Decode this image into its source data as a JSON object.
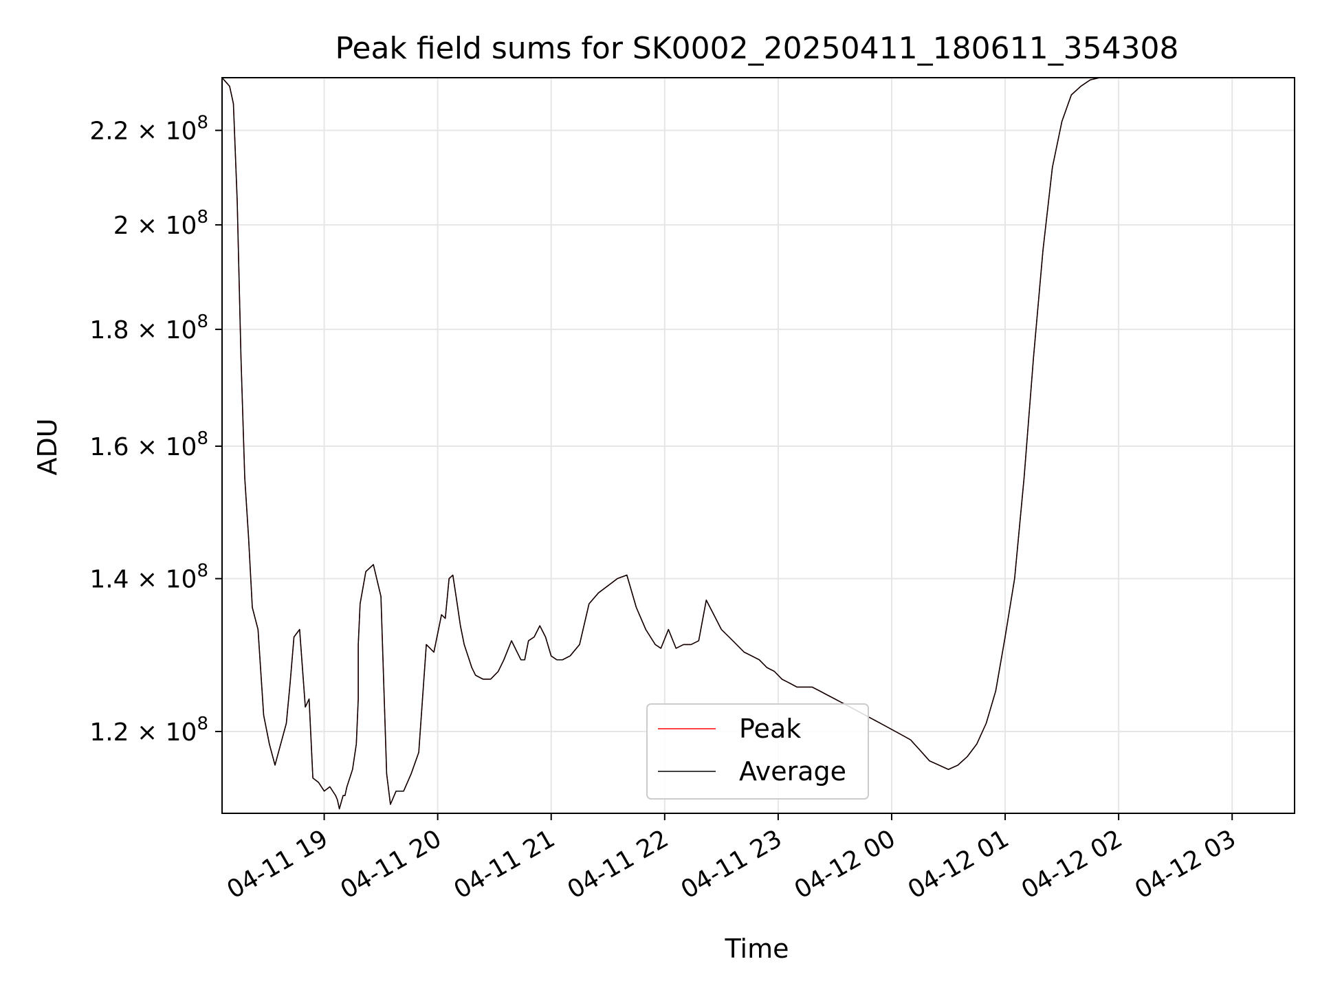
{
  "chart_data": {
    "type": "line",
    "title": "Peak field sums for SK0002_20250411_180611_354308",
    "xlabel": "Time",
    "ylabel": "ADU",
    "yscale": "log",
    "grid": true,
    "legend_position": "lower center",
    "xlim": [
      "2025-04-11 18:06",
      "2025-04-12 03:33"
    ],
    "ylim": [
      110500000,
      232000000
    ],
    "x_ticks": [
      {
        "value": "2025-04-11 19:00",
        "label": "04-11 19"
      },
      {
        "value": "2025-04-11 20:00",
        "label": "04-11 20"
      },
      {
        "value": "2025-04-11 21:00",
        "label": "04-11 21"
      },
      {
        "value": "2025-04-11 22:00",
        "label": "04-11 22"
      },
      {
        "value": "2025-04-11 23:00",
        "label": "04-11 23"
      },
      {
        "value": "2025-04-12 00:00",
        "label": "04-12 00"
      },
      {
        "value": "2025-04-12 01:00",
        "label": "04-12 01"
      },
      {
        "value": "2025-04-12 02:00",
        "label": "04-12 02"
      },
      {
        "value": "2025-04-12 03:00",
        "label": "04-12 03"
      }
    ],
    "y_ticks": [
      {
        "value": 120000000,
        "mantissa": "1.2",
        "base": "10",
        "exp": "8"
      },
      {
        "value": 140000000,
        "mantissa": "1.4",
        "base": "10",
        "exp": "8"
      },
      {
        "value": 160000000,
        "mantissa": "1.6",
        "base": "10",
        "exp": "8"
      },
      {
        "value": 180000000,
        "mantissa": "1.8",
        "base": "10",
        "exp": "8"
      },
      {
        "value": 200000000,
        "mantissa": "2",
        "base": "10",
        "exp": "8"
      },
      {
        "value": 220000000,
        "mantissa": "2.2",
        "base": "10",
        "exp": "8"
      }
    ],
    "series": [
      {
        "name": "Peak",
        "color": "#ff0000",
        "x": [
          "2025-04-11 18:06",
          "2025-04-11 18:10",
          "2025-04-11 18:12",
          "2025-04-11 18:14",
          "2025-04-11 18:16",
          "2025-04-11 18:18",
          "2025-04-11 18:20",
          "2025-04-11 18:22",
          "2025-04-11 18:25",
          "2025-04-11 18:28",
          "2025-04-11 18:31",
          "2025-04-11 18:34",
          "2025-04-11 18:37",
          "2025-04-11 18:40",
          "2025-04-11 18:42",
          "2025-04-11 18:44",
          "2025-04-11 18:47",
          "2025-04-11 18:50",
          "2025-04-11 18:52",
          "2025-04-11 18:54",
          "2025-04-11 18:57",
          "2025-04-11 19:00",
          "2025-04-11 19:03",
          "2025-04-11 19:06",
          "2025-04-11 19:07",
          "2025-04-11 19:08",
          "2025-04-11 19:10",
          "2025-04-11 19:11",
          "2025-04-11 19:12",
          "2025-04-11 19:15",
          "2025-04-11 19:17",
          "2025-04-11 19:18",
          "2025-04-11 19:18",
          "2025-04-11 19:19",
          "2025-04-11 19:22",
          "2025-04-11 19:26",
          "2025-04-11 19:30",
          "2025-04-11 19:33",
          "2025-04-11 19:35",
          "2025-04-11 19:38",
          "2025-04-11 19:42",
          "2025-04-11 19:46",
          "2025-04-11 19:50",
          "2025-04-11 19:54",
          "2025-04-11 19:58",
          "2025-04-11 20:02",
          "2025-04-11 20:04",
          "2025-04-11 20:06",
          "2025-04-11 20:08",
          "2025-04-11 20:10",
          "2025-04-11 20:12",
          "2025-04-11 20:14",
          "2025-04-11 20:16",
          "2025-04-11 20:18",
          "2025-04-11 20:20",
          "2025-04-11 20:24",
          "2025-04-11 20:28",
          "2025-04-11 20:32",
          "2025-04-11 20:35",
          "2025-04-11 20:39",
          "2025-04-11 20:42",
          "2025-04-11 20:44",
          "2025-04-11 20:46",
          "2025-04-11 20:48",
          "2025-04-11 20:51",
          "2025-04-11 20:54",
          "2025-04-11 20:57",
          "2025-04-11 21:00",
          "2025-04-11 21:03",
          "2025-04-11 21:06",
          "2025-04-11 21:10",
          "2025-04-11 21:15",
          "2025-04-11 21:20",
          "2025-04-11 21:25",
          "2025-04-11 21:30",
          "2025-04-11 21:35",
          "2025-04-11 21:40",
          "2025-04-11 21:45",
          "2025-04-11 21:50",
          "2025-04-11 21:55",
          "2025-04-11 21:58",
          "2025-04-11 22:02",
          "2025-04-11 22:06",
          "2025-04-11 22:10",
          "2025-04-11 22:14",
          "2025-04-11 22:18",
          "2025-04-11 22:22",
          "2025-04-11 22:26",
          "2025-04-11 22:30",
          "2025-04-11 22:34",
          "2025-04-11 22:38",
          "2025-04-11 22:42",
          "2025-04-11 22:46",
          "2025-04-11 22:50",
          "2025-04-11 22:54",
          "2025-04-11 22:58",
          "2025-04-11 23:02",
          "2025-04-11 23:06",
          "2025-04-11 23:10",
          "2025-04-11 23:14",
          "2025-04-11 23:18",
          "2025-04-11 23:22",
          "2025-04-11 23:26",
          "2025-04-11 23:30",
          "2025-04-11 23:34",
          "2025-04-11 23:38",
          "2025-04-11 23:42",
          "2025-04-11 23:46",
          "2025-04-11 23:50",
          "2025-04-11 23:54",
          "2025-04-11 23:58",
          "2025-04-12 00:02",
          "2025-04-12 00:06",
          "2025-04-12 00:10",
          "2025-04-12 00:12",
          "2025-04-12 00:14",
          "2025-04-12 00:16",
          "2025-04-12 00:20",
          "2025-04-12 00:25",
          "2025-04-12 00:30",
          "2025-04-12 00:35",
          "2025-04-12 00:40",
          "2025-04-12 00:45",
          "2025-04-12 00:50",
          "2025-04-12 00:55",
          "2025-04-12 01:00",
          "2025-04-12 01:05",
          "2025-04-12 01:10",
          "2025-04-12 01:15",
          "2025-04-12 01:20",
          "2025-04-12 01:25",
          "2025-04-12 01:30",
          "2025-04-12 01:35",
          "2025-04-12 01:40",
          "2025-04-12 01:45",
          "2025-04-12 01:50",
          "2025-04-12 01:55",
          "2025-04-12 02:00",
          "2025-04-12 02:05",
          "2025-04-12 02:10",
          "2025-04-12 02:15",
          "2025-04-12 02:20",
          "2025-04-12 02:25",
          "2025-04-12 02:30",
          "2025-04-12 02:35",
          "2025-04-12 02:40",
          "2025-04-12 02:43",
          "2025-04-12 02:46",
          "2025-04-12 02:48",
          "2025-04-12 02:51",
          "2025-04-12 02:54",
          "2025-04-12 02:57",
          "2025-04-12 03:00",
          "2025-04-12 03:03",
          "2025-04-12 03:06",
          "2025-04-12 03:09",
          "2025-04-12 03:12",
          "2025-04-12 03:15",
          "2025-04-12 03:18",
          "2025-04-12 03:21",
          "2025-04-12 03:25",
          "2025-04-12 03:33"
        ],
        "y": [
          232000000,
          230000000,
          226000000,
          205000000,
          175000000,
          155000000,
          146000000,
          136000000,
          133000000,
          122000000,
          118500000,
          116000000,
          118500000,
          121000000,
          126000000,
          132000000,
          133000000,
          123000000,
          124000000,
          114500000,
          114000000,
          113000000,
          113500000,
          112500000,
          112000000,
          111000000,
          112500000,
          112500000,
          113500000,
          115500000,
          118500000,
          124000000,
          131000000,
          136500000,
          141000000,
          142000000,
          137500000,
          115000000,
          111500000,
          113000000,
          113000000,
          115000000,
          117500000,
          131000000,
          130000000,
          135000000,
          134500000,
          140000000,
          140500000,
          137000000,
          133500000,
          131000000,
          129500000,
          128000000,
          127000000,
          126500000,
          126500000,
          127500000,
          129000000,
          131500000,
          130000000,
          129000000,
          129000000,
          131500000,
          132000000,
          133500000,
          132000000,
          129500000,
          129000000,
          129000000,
          129500000,
          131000000,
          136500000,
          138000000,
          139000000,
          140000000,
          140500000,
          136000000,
          133000000,
          131000000,
          130500000,
          133000000,
          130500000,
          131000000,
          131000000,
          131500000,
          137000000,
          135000000,
          133000000,
          132000000,
          131000000,
          130000000,
          129500000,
          129000000,
          128000000,
          127500000,
          126500000,
          126000000,
          125500000,
          125500000,
          125500000,
          125000000,
          124500000,
          124000000,
          123500000,
          123000000,
          122500000,
          122000000,
          121500000,
          121000000,
          120500000,
          120000000,
          119500000,
          119000000,
          118500000,
          118000000,
          117500000,
          116500000,
          116000000,
          115500000,
          116000000,
          117000000,
          118500000,
          121000000,
          125000000,
          132000000,
          140000000,
          155000000,
          175000000,
          195000000,
          212000000,
          222000000,
          228000000,
          230000000,
          231500000,
          232000000,
          232000000,
          232000000,
          232000000,
          232000000,
          232000000,
          232000000,
          232000000,
          232000000,
          232000000,
          232000000,
          232000000,
          232000000,
          232000000,
          232000000,
          232000000,
          232000000,
          232000000,
          232000000,
          232000000,
          232000000,
          232000000,
          232000000,
          232000000,
          232000000,
          232000000,
          232000000
        ]
      },
      {
        "name": "Average",
        "color": "#000000",
        "x": [
          "2025-04-11 18:06",
          "2025-04-11 18:10",
          "2025-04-11 18:12",
          "2025-04-11 18:14",
          "2025-04-11 18:16",
          "2025-04-11 18:18",
          "2025-04-11 18:20",
          "2025-04-11 18:22",
          "2025-04-11 18:25",
          "2025-04-11 18:28",
          "2025-04-11 18:31",
          "2025-04-11 18:34",
          "2025-04-11 18:37",
          "2025-04-11 18:40",
          "2025-04-11 18:42",
          "2025-04-11 18:44",
          "2025-04-11 18:47",
          "2025-04-11 18:50",
          "2025-04-11 18:52",
          "2025-04-11 18:54",
          "2025-04-11 18:57",
          "2025-04-11 19:00",
          "2025-04-11 19:03",
          "2025-04-11 19:06",
          "2025-04-11 19:07",
          "2025-04-11 19:08",
          "2025-04-11 19:10",
          "2025-04-11 19:11",
          "2025-04-11 19:12",
          "2025-04-11 19:15",
          "2025-04-11 19:17",
          "2025-04-11 19:18",
          "2025-04-11 19:18",
          "2025-04-11 19:19",
          "2025-04-11 19:22",
          "2025-04-11 19:26",
          "2025-04-11 19:30",
          "2025-04-11 19:33",
          "2025-04-11 19:35",
          "2025-04-11 19:38",
          "2025-04-11 19:42",
          "2025-04-11 19:46",
          "2025-04-11 19:50",
          "2025-04-11 19:54",
          "2025-04-11 19:58",
          "2025-04-11 20:02",
          "2025-04-11 20:04",
          "2025-04-11 20:06",
          "2025-04-11 20:08",
          "2025-04-11 20:10",
          "2025-04-11 20:12",
          "2025-04-11 20:14",
          "2025-04-11 20:16",
          "2025-04-11 20:18",
          "2025-04-11 20:20",
          "2025-04-11 20:24",
          "2025-04-11 20:28",
          "2025-04-11 20:32",
          "2025-04-11 20:35",
          "2025-04-11 20:39",
          "2025-04-11 20:42",
          "2025-04-11 20:44",
          "2025-04-11 20:46",
          "2025-04-11 20:48",
          "2025-04-11 20:51",
          "2025-04-11 20:54",
          "2025-04-11 20:57",
          "2025-04-11 21:00",
          "2025-04-11 21:03",
          "2025-04-11 21:06",
          "2025-04-11 21:10",
          "2025-04-11 21:15",
          "2025-04-11 21:20",
          "2025-04-11 21:25",
          "2025-04-11 21:30",
          "2025-04-11 21:35",
          "2025-04-11 21:40",
          "2025-04-11 21:45",
          "2025-04-11 21:50",
          "2025-04-11 21:55",
          "2025-04-11 21:58",
          "2025-04-11 22:02",
          "2025-04-11 22:06",
          "2025-04-11 22:10",
          "2025-04-11 22:14",
          "2025-04-11 22:18",
          "2025-04-11 22:22",
          "2025-04-11 22:26",
          "2025-04-11 22:30",
          "2025-04-11 22:34",
          "2025-04-11 22:38",
          "2025-04-11 22:42",
          "2025-04-11 22:46",
          "2025-04-11 22:50",
          "2025-04-11 22:54",
          "2025-04-11 22:58",
          "2025-04-11 23:02",
          "2025-04-11 23:06",
          "2025-04-11 23:10",
          "2025-04-11 23:14",
          "2025-04-11 23:18",
          "2025-04-11 23:22",
          "2025-04-11 23:26",
          "2025-04-11 23:30",
          "2025-04-11 23:34",
          "2025-04-11 23:38",
          "2025-04-11 23:42",
          "2025-04-11 23:46",
          "2025-04-11 23:50",
          "2025-04-11 23:54",
          "2025-04-11 23:58",
          "2025-04-12 00:02",
          "2025-04-12 00:06",
          "2025-04-12 00:10",
          "2025-04-12 00:12",
          "2025-04-12 00:14",
          "2025-04-12 00:16",
          "2025-04-12 00:20",
          "2025-04-12 00:25",
          "2025-04-12 00:30",
          "2025-04-12 00:35",
          "2025-04-12 00:40",
          "2025-04-12 00:45",
          "2025-04-12 00:50",
          "2025-04-12 00:55",
          "2025-04-12 01:00",
          "2025-04-12 01:05",
          "2025-04-12 01:10",
          "2025-04-12 01:15",
          "2025-04-12 01:20",
          "2025-04-12 01:25",
          "2025-04-12 01:30",
          "2025-04-12 01:35",
          "2025-04-12 01:40",
          "2025-04-12 01:45",
          "2025-04-12 01:50",
          "2025-04-12 01:55",
          "2025-04-12 02:00",
          "2025-04-12 02:05",
          "2025-04-12 02:10",
          "2025-04-12 02:15",
          "2025-04-12 02:20",
          "2025-04-12 02:25",
          "2025-04-12 02:30",
          "2025-04-12 02:35",
          "2025-04-12 02:40",
          "2025-04-12 02:43",
          "2025-04-12 02:46",
          "2025-04-12 02:48",
          "2025-04-12 02:51",
          "2025-04-12 02:54",
          "2025-04-12 02:57",
          "2025-04-12 03:00",
          "2025-04-12 03:03",
          "2025-04-12 03:06",
          "2025-04-12 03:09",
          "2025-04-12 03:12",
          "2025-04-12 03:15",
          "2025-04-12 03:18",
          "2025-04-12 03:21",
          "2025-04-12 03:25",
          "2025-04-12 03:33"
        ],
        "y": [
          232000000,
          230000000,
          226000000,
          205000000,
          175000000,
          155000000,
          146000000,
          136000000,
          133000000,
          122000000,
          118500000,
          116000000,
          118500000,
          121000000,
          126000000,
          132000000,
          133000000,
          123000000,
          124000000,
          114500000,
          114000000,
          113000000,
          113500000,
          112500000,
          112000000,
          111000000,
          112500000,
          112500000,
          113500000,
          115500000,
          118500000,
          124000000,
          131000000,
          136500000,
          141000000,
          142000000,
          137500000,
          115000000,
          111500000,
          113000000,
          113000000,
          115000000,
          117500000,
          131000000,
          130000000,
          135000000,
          134500000,
          140000000,
          140500000,
          137000000,
          133500000,
          131000000,
          129500000,
          128000000,
          127000000,
          126500000,
          126500000,
          127500000,
          129000000,
          131500000,
          130000000,
          129000000,
          129000000,
          131500000,
          132000000,
          133500000,
          132000000,
          129500000,
          129000000,
          129000000,
          129500000,
          131000000,
          136500000,
          138000000,
          139000000,
          140000000,
          140500000,
          136000000,
          133000000,
          131000000,
          130500000,
          133000000,
          130500000,
          131000000,
          131000000,
          131500000,
          137000000,
          135000000,
          133000000,
          132000000,
          131000000,
          130000000,
          129500000,
          129000000,
          128000000,
          127500000,
          126500000,
          126000000,
          125500000,
          125500000,
          125500000,
          125000000,
          124500000,
          124000000,
          123500000,
          123000000,
          122500000,
          122000000,
          121500000,
          121000000,
          120500000,
          120000000,
          119500000,
          119000000,
          118500000,
          118000000,
          117500000,
          116500000,
          116000000,
          115500000,
          116000000,
          117000000,
          118500000,
          121000000,
          125000000,
          132000000,
          140000000,
          155000000,
          175000000,
          195000000,
          212000000,
          222000000,
          228000000,
          230000000,
          231500000,
          232000000,
          232000000,
          232000000,
          232000000,
          232000000,
          232000000,
          232000000,
          232000000,
          232000000,
          232000000,
          232000000,
          232000000,
          232000000,
          232000000,
          232000000,
          232000000,
          232000000,
          232000000,
          232000000,
          232000000,
          232000000,
          232000000,
          232000000,
          232000000,
          232000000,
          232000000,
          232000000
        ]
      }
    ]
  }
}
